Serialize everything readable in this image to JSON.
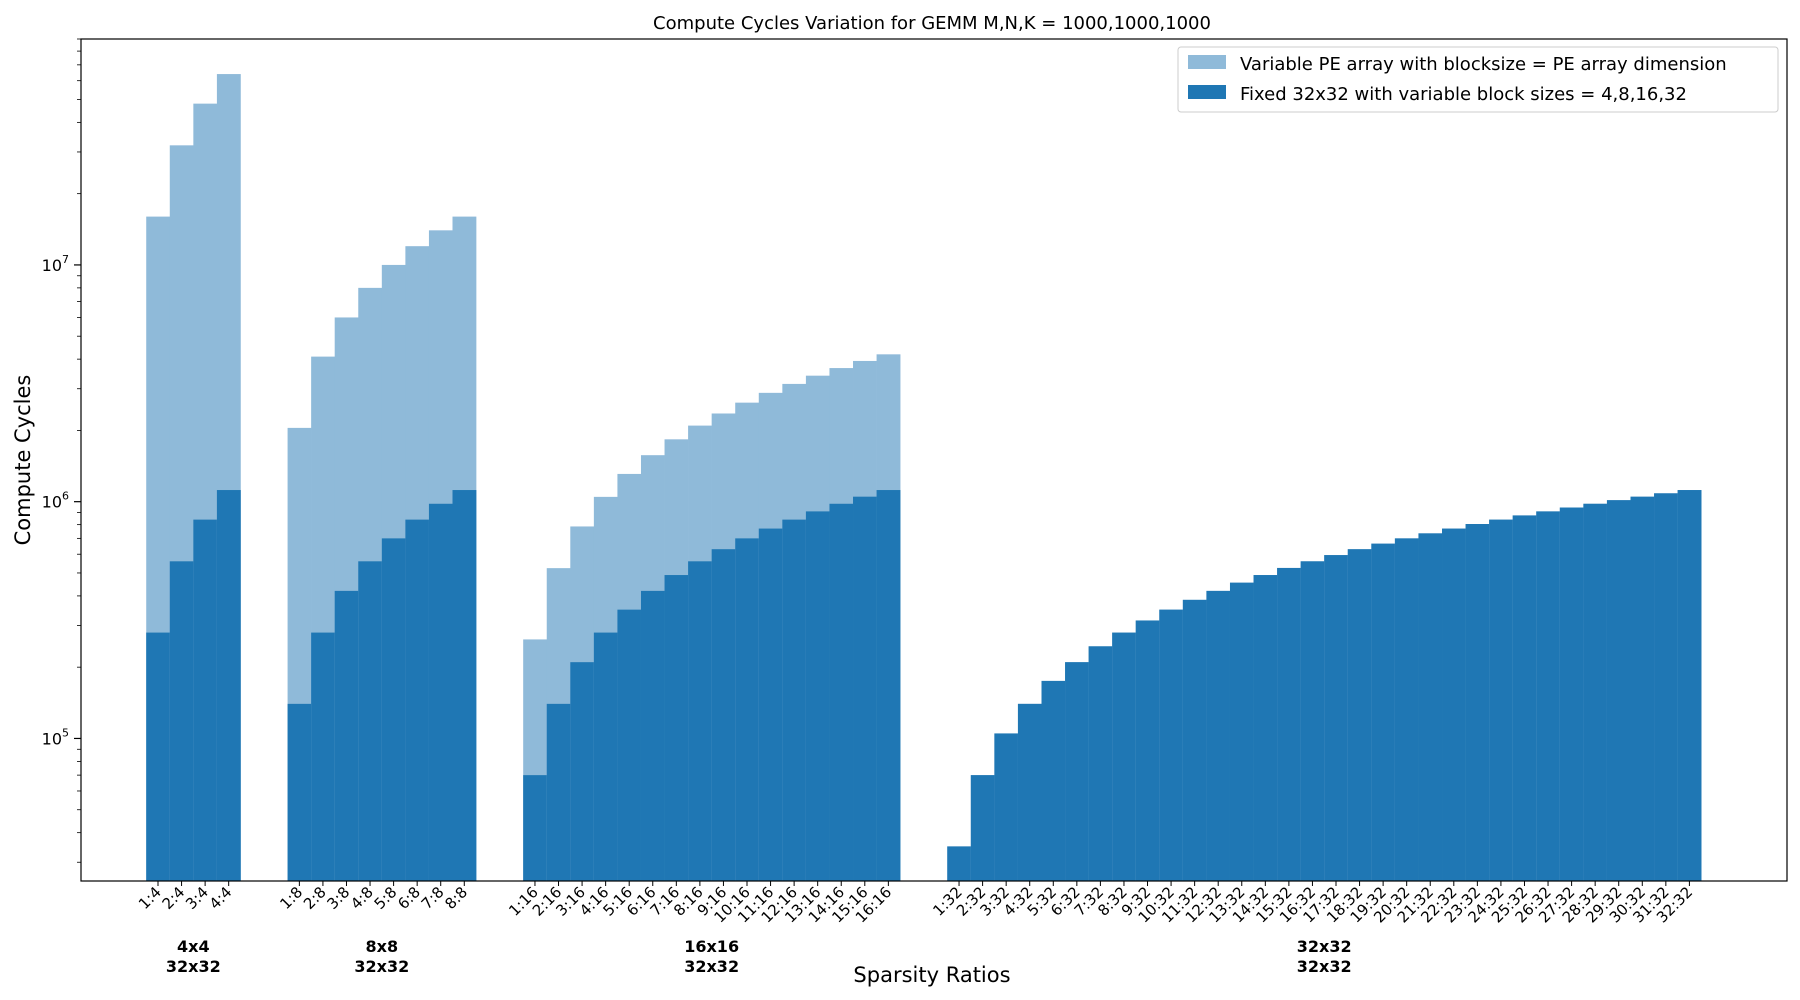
{
  "chart_data": {
    "type": "bar",
    "title": "Compute Cycles Variation for GEMM M,N,K = 1000,1000,1000",
    "xlabel": "Sparsity Ratios",
    "ylabel": "Compute Cycles",
    "yscale": "log",
    "ylim": [
      25000,
      90000000
    ],
    "y_ticks": [
      {
        "value": 100000,
        "base": "10",
        "exp": "5"
      },
      {
        "value": 1000000,
        "base": "10",
        "exp": "6"
      },
      {
        "value": 10000000,
        "base": "10",
        "exp": "7"
      }
    ],
    "legend_position": "top-right",
    "colors": {
      "variable": "#8fbad9",
      "fixed": "#1f77b4"
    },
    "series": [
      {
        "name": "Variable PE array with blocksize = PE array dimension",
        "key": "variable"
      },
      {
        "name": "Fixed 32x32 with variable block sizes = 4,8,16,32",
        "key": "fixed"
      }
    ],
    "groups": [
      {
        "label_variable": "4x4",
        "label_fixed": "32x32",
        "categories": [
          "1:4",
          "2:4",
          "3:4",
          "4:4"
        ],
        "variable": [
          16000000,
          32000000,
          48000000,
          64000000
        ],
        "fixed": [
          280000,
          560000,
          840000,
          1120000
        ]
      },
      {
        "label_variable": "8x8",
        "label_fixed": "32x32",
        "categories": [
          "1:8",
          "2:8",
          "3:8",
          "4:8",
          "5:8",
          "6:8",
          "7:8",
          "8:8"
        ],
        "variable": [
          2050000,
          4100000,
          6000000,
          8000000,
          10000000,
          12000000,
          14000000,
          16000000
        ],
        "fixed": [
          140000,
          280000,
          420000,
          560000,
          700000,
          840000,
          980000,
          1120000
        ]
      },
      {
        "label_variable": "16x16",
        "label_fixed": "32x32",
        "categories": [
          "1:16",
          "2:16",
          "3:16",
          "4:16",
          "5:16",
          "6:16",
          "7:16",
          "8:16",
          "9:16",
          "10:16",
          "11:16",
          "12:16",
          "13:16",
          "14:16",
          "15:16",
          "16:16"
        ],
        "variable": [
          262000,
          524000,
          786000,
          1048000,
          1310000,
          1572000,
          1834000,
          2096000,
          2358000,
          2620000,
          2882000,
          3144000,
          3406000,
          3668000,
          3930000,
          4192000
        ],
        "fixed": [
          70000,
          140000,
          210000,
          280000,
          350000,
          420000,
          490000,
          560000,
          630000,
          700000,
          770000,
          840000,
          910000,
          980000,
          1050000,
          1120000
        ]
      },
      {
        "label_variable": "32x32",
        "label_fixed": "32x32",
        "categories": [
          "1:32",
          "2:32",
          "3:32",
          "4:32",
          "5:32",
          "6:32",
          "7:32",
          "8:32",
          "9:32",
          "10:32",
          "11:32",
          "12:32",
          "13:32",
          "14:32",
          "15:32",
          "16:32",
          "17:32",
          "18:32",
          "19:32",
          "20:32",
          "21:32",
          "22:32",
          "23:32",
          "24:32",
          "25:32",
          "26:32",
          "27:32",
          "28:32",
          "29:32",
          "30:32",
          "31:32",
          "32:32"
        ],
        "variable": [
          35000,
          70000,
          105000,
          140000,
          175000,
          210000,
          245000,
          280000,
          315000,
          350000,
          385000,
          420000,
          455000,
          490000,
          525000,
          560000,
          595000,
          630000,
          665000,
          700000,
          735000,
          770000,
          805000,
          840000,
          875000,
          910000,
          945000,
          980000,
          1015000,
          1050000,
          1085000,
          1120000
        ],
        "fixed": [
          35000,
          70000,
          105000,
          140000,
          175000,
          210000,
          245000,
          280000,
          315000,
          350000,
          385000,
          420000,
          455000,
          490000,
          525000,
          560000,
          595000,
          630000,
          665000,
          700000,
          735000,
          770000,
          805000,
          840000,
          875000,
          910000,
          945000,
          980000,
          1015000,
          1050000,
          1085000,
          1120000
        ]
      }
    ]
  }
}
